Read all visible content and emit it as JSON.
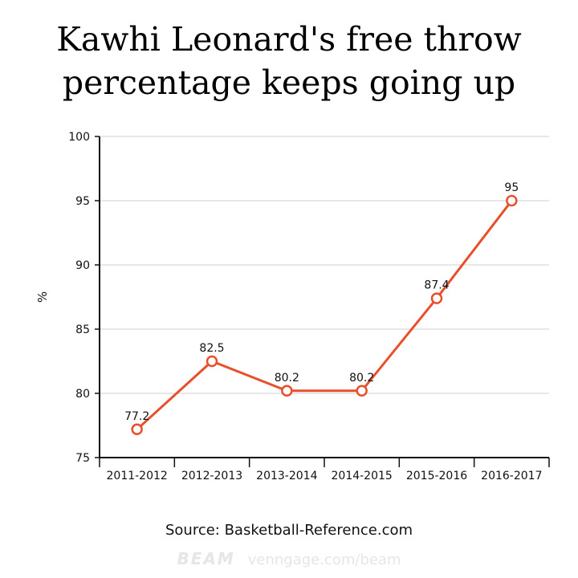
{
  "chart_data": {
    "type": "line",
    "title": "Kawhi Leonard's free throw percentage keeps going up",
    "title_lines": [
      "Kawhi Leonard's free throw",
      "percentage keeps going up"
    ],
    "ylabel": "%",
    "xlabel": "",
    "categories": [
      "2011-2012",
      "2012-2013",
      "2013-2014",
      "2014-2015",
      "2015-2016",
      "2016-2017"
    ],
    "values": [
      77.2,
      82.5,
      80.2,
      80.2,
      87.4,
      95
    ],
    "ylim": [
      75,
      100
    ],
    "yticks": [
      75,
      80,
      85,
      90,
      95,
      100
    ],
    "grid": true,
    "line_color": "#e8502c"
  },
  "footer": {
    "source": "Source: Basketball-Reference.com",
    "brand_logo": "BEAM",
    "brand_url": "venngage.com/beam"
  }
}
